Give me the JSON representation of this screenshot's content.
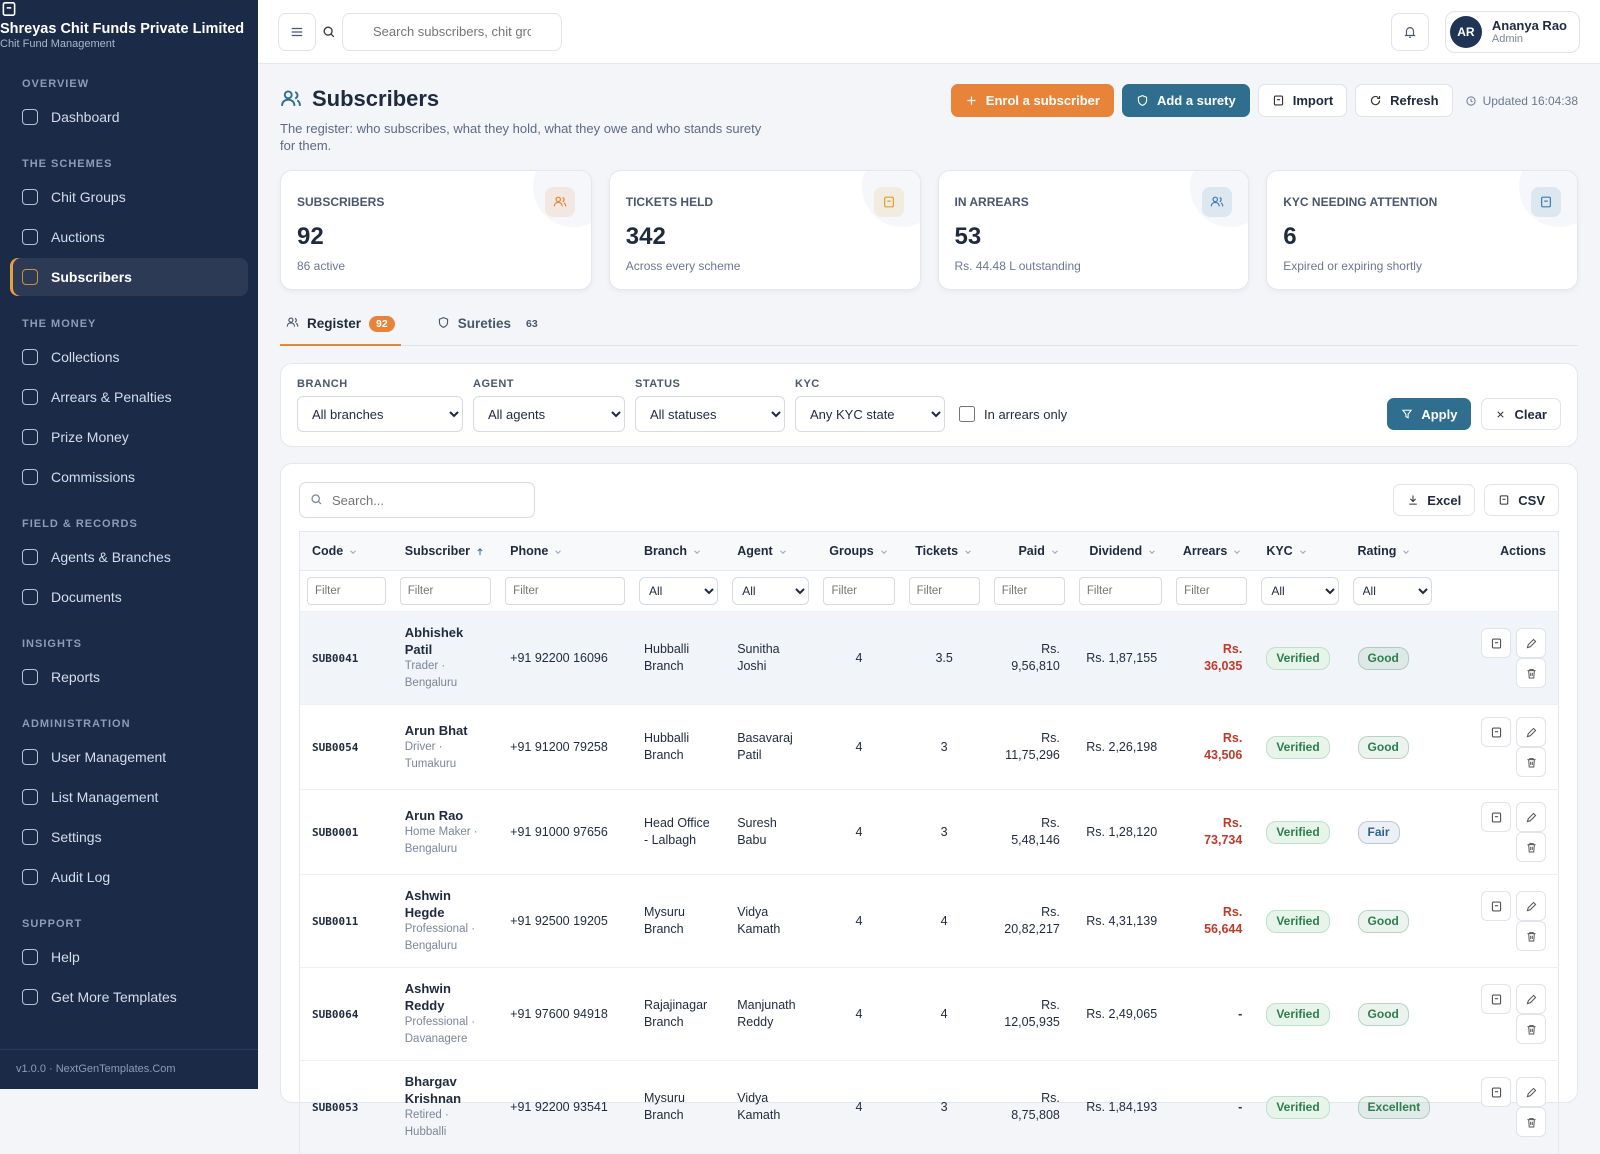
{
  "brand": {
    "name": "Shreyas Chit Funds Private Limited",
    "tagline": "Chit Fund Management"
  },
  "nav": [
    {
      "title": "OVERVIEW",
      "items": [
        "Dashboard"
      ]
    },
    {
      "title": "THE SCHEMES",
      "items": [
        "Chit Groups",
        "Auctions",
        "Subscribers"
      ]
    },
    {
      "title": "THE MONEY",
      "items": [
        "Collections",
        "Arrears & Penalties",
        "Prize Money",
        "Commissions"
      ]
    },
    {
      "title": "FIELD & RECORDS",
      "items": [
        "Agents & Branches",
        "Documents"
      ]
    },
    {
      "title": "INSIGHTS",
      "items": [
        "Reports"
      ]
    },
    {
      "title": "ADMINISTRATION",
      "items": [
        "User Management",
        "List Management",
        "Settings",
        "Audit Log"
      ]
    },
    {
      "title": "SUPPORT",
      "items": [
        "Help",
        "Get More Templates"
      ]
    }
  ],
  "active_nav": [
    1,
    2
  ],
  "version": "v1.0.0 · NextGenTemplates.Com",
  "topbar": {
    "search_placeholder": "Search subscribers, chit groups",
    "user": {
      "initials": "AR",
      "name": "Ananya Rao",
      "role": "Admin"
    }
  },
  "page": {
    "title": "Subscribers",
    "description": "The register: who subscribes, what they hold, what they owe and who stands surety for them.",
    "actions": [
      "Enrol a subscriber",
      "Add a surety",
      "Import",
      "Refresh"
    ],
    "updated": "Updated 16:04:38"
  },
  "stats": [
    {
      "label": "SUBSCRIBERS",
      "value": 92,
      "note": "86 active",
      "color": "#e8833a"
    },
    {
      "label": "TICKETS HELD",
      "value": 342,
      "note": "Across every scheme",
      "color": "#e0a030"
    },
    {
      "label": "IN ARREARS",
      "value": 53,
      "note": "Rs. 44.48 L outstanding",
      "color": "#3d7fb0"
    },
    {
      "label": "KYC NEEDING ATTENTION",
      "value": 6,
      "note": "Expired or expiring shortly",
      "color": "#3d7fb0"
    }
  ],
  "tabs": [
    {
      "label": "Register",
      "count": 92
    },
    {
      "label": "Sureties",
      "count": 63
    }
  ],
  "filters": {
    "fields": [
      {
        "label": "BRANCH",
        "option": "All branches"
      },
      {
        "label": "AGENT",
        "option": "All agents"
      },
      {
        "label": "STATUS",
        "option": "All statuses"
      },
      {
        "label": "KYC",
        "option": "Any KYC state"
      }
    ],
    "checkbox": "In arrears only",
    "apply": "Apply",
    "clear": "Clear"
  },
  "table": {
    "search_placeholder": "Search...",
    "exports": [
      "Excel",
      "CSV"
    ],
    "columns": [
      "Code",
      "Subscriber",
      "Phone",
      "Branch",
      "Agent",
      "Groups",
      "Tickets",
      "Paid",
      "Dividend",
      "Arrears",
      "KYC",
      "Rating",
      "Actions"
    ],
    "sort": {
      "column": 1,
      "direction": "asc"
    },
    "column_filters": [
      "Filter",
      "Filter",
      "Filter",
      "All",
      "All",
      "Filter",
      "Filter",
      "Filter",
      "Filter",
      "Filter",
      "All",
      "All"
    ],
    "rows": [
      {
        "code": "SUB0041",
        "name": "Abhishek Patil",
        "meta": "Trader · Bengaluru",
        "phone": "+91 92200 16096",
        "branch": "Hubballi Branch",
        "agent": "Sunitha Joshi",
        "groups": 4,
        "tickets": 3.5,
        "paid": "Rs. 9,56,810",
        "dividend": "Rs. 1,87,155",
        "arrears": "Rs. 36,035",
        "arrears_color": "#c0392b",
        "kyc": "Verified",
        "rating": "Good",
        "rating_color": "#2e7d4f"
      },
      {
        "code": "SUB0054",
        "name": "Arun Bhat",
        "meta": "Driver · Tumakuru",
        "phone": "+91 91200 79258",
        "branch": "Hubballi Branch",
        "agent": "Basavaraj Patil",
        "groups": 4,
        "tickets": 3,
        "paid": "Rs. 11,75,296",
        "dividend": "Rs. 2,26,198",
        "arrears": "Rs. 43,506",
        "arrears_color": "#c0392b",
        "kyc": "Verified",
        "rating": "Good",
        "rating_color": "#2e7d4f"
      },
      {
        "code": "SUB0001",
        "name": "Arun Rao",
        "meta": "Home Maker · Bengaluru",
        "phone": "+91 91000 97656",
        "branch": "Head Office - Lalbagh",
        "agent": "Suresh Babu",
        "groups": 4,
        "tickets": 3,
        "paid": "Rs. 5,48,146",
        "dividend": "Rs. 1,28,120",
        "arrears": "Rs. 73,734",
        "arrears_color": "#c0392b",
        "kyc": "Verified",
        "rating": "Fair",
        "rating_color": "#2f5f8f"
      },
      {
        "code": "SUB0011",
        "name": "Ashwin Hegde",
        "meta": "Professional · Bengaluru",
        "phone": "+91 92500 19205",
        "branch": "Mysuru Branch",
        "agent": "Vidya Kamath",
        "groups": 4,
        "tickets": 4,
        "paid": "Rs. 20,82,217",
        "dividend": "Rs. 4,31,139",
        "arrears": "Rs. 56,644",
        "arrears_color": "#c0392b",
        "kyc": "Verified",
        "rating": "Good",
        "rating_color": "#2e7d4f"
      },
      {
        "code": "SUB0064",
        "name": "Ashwin Reddy",
        "meta": "Professional · Davanagere",
        "phone": "+91 97600 94918",
        "branch": "Rajajinagar Branch",
        "agent": "Manjunath Reddy",
        "groups": 4,
        "tickets": 4,
        "paid": "Rs. 12,05,935",
        "dividend": "Rs. 2,49,065",
        "arrears": "-",
        "arrears_color": "#333333",
        "kyc": "Verified",
        "rating": "Good",
        "rating_color": "#2e7d4f"
      },
      {
        "code": "SUB0053",
        "name": "Bhargav Krishnan",
        "meta": "Retired · Hubballi",
        "phone": "+91 92200 93541",
        "branch": "Mysuru Branch",
        "agent": "Vidya Kamath",
        "groups": 4,
        "tickets": 3,
        "paid": "Rs. 8,75,808",
        "dividend": "Rs. 1,84,193",
        "arrears": "-",
        "arrears_color": "#333333",
        "kyc": "Verified",
        "rating": "Excellent",
        "rating_color": "#2e7d4f"
      }
    ]
  }
}
